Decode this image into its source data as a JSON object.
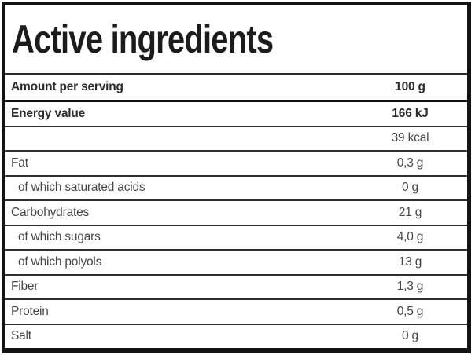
{
  "table": {
    "title": "Active ingredients",
    "header": {
      "label": "Amount per serving",
      "value": "100 g"
    },
    "rows": [
      {
        "label": "Energy value",
        "value": "166 kJ"
      },
      {
        "label": "",
        "value": "39 kcal"
      },
      {
        "label": "Fat",
        "value": "0,3 g"
      },
      {
        "label": "of which saturated acids",
        "value": "0 g"
      },
      {
        "label": "Carbohydrates",
        "value": "21 g"
      },
      {
        "label": "of which sugars",
        "value": "4,0 g"
      },
      {
        "label": "of which polyols",
        "value": "13 g"
      },
      {
        "label": "Fiber",
        "value": "1,3 g"
      },
      {
        "label": "Protein",
        "value": "0,5 g"
      },
      {
        "label": "Salt",
        "value": "0 g"
      }
    ],
    "colors": {
      "border": "#141414",
      "separator": "#2e2e2e",
      "header_separator": "#0f0f0f",
      "title_text": "#1c1c1c",
      "bold_text": "#2b2b2b",
      "regular_text": "#464646",
      "background": "#ffffff"
    }
  }
}
